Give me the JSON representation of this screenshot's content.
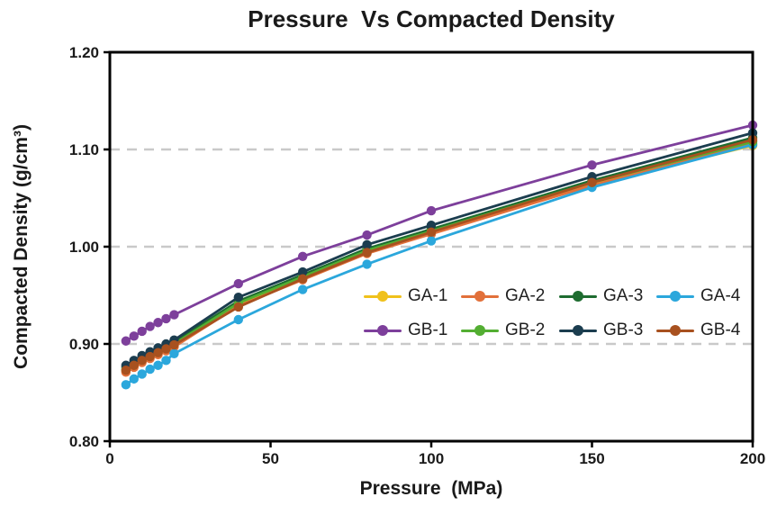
{
  "chart_data": {
    "type": "line",
    "title": "Pressure  Vs Compacted Density",
    "xlabel": "Pressure  (MPa)",
    "ylabel": "Compacted Density (g/cm³)",
    "x": [
      5,
      7.5,
      10,
      12.5,
      15,
      17.5,
      20,
      40,
      60,
      80,
      100,
      150,
      200
    ],
    "xlim": [
      0,
      200
    ],
    "ylim": [
      0.8,
      1.2
    ],
    "x_ticks": [
      "0",
      "50",
      "100",
      "150",
      "200"
    ],
    "y_ticks": [
      "0.80",
      "0.90",
      "1.00",
      "1.10",
      "1.20"
    ],
    "y_gridlines": [
      0.9,
      1.0,
      1.1
    ],
    "grid_style": "dashed horizontal, light gray",
    "legend_position": "inside plot, lower right, 2 rows x 4 columns",
    "series": [
      {
        "name": "GA-1",
        "color": "#F0C11B",
        "values": [
          0.872,
          0.877,
          0.882,
          0.886,
          0.89,
          0.894,
          0.898,
          0.94,
          0.967,
          0.994,
          1.014,
          1.064,
          1.104
        ]
      },
      {
        "name": "GA-2",
        "color": "#E2703A",
        "values": [
          0.871,
          0.876,
          0.881,
          0.885,
          0.889,
          0.893,
          0.897,
          0.939,
          0.966,
          0.993,
          1.013,
          1.063,
          1.106
        ]
      },
      {
        "name": "GA-3",
        "color": "#1E6C30",
        "values": [
          0.876,
          0.881,
          0.886,
          0.89,
          0.894,
          0.898,
          0.902,
          0.944,
          0.971,
          0.998,
          1.018,
          1.068,
          1.112
        ]
      },
      {
        "name": "GA-4",
        "color": "#2BA7DC",
        "values": [
          0.858,
          0.864,
          0.869,
          0.874,
          0.878,
          0.883,
          0.89,
          0.925,
          0.956,
          0.982,
          1.006,
          1.061,
          1.105
        ]
      },
      {
        "name": "GB-1",
        "color": "#7D3F9B",
        "values": [
          0.903,
          0.908,
          0.913,
          0.918,
          0.922,
          0.926,
          0.93,
          0.962,
          0.99,
          1.012,
          1.037,
          1.084,
          1.125
        ]
      },
      {
        "name": "GB-2",
        "color": "#53AE32",
        "values": [
          0.874,
          0.879,
          0.884,
          0.888,
          0.892,
          0.896,
          0.9,
          0.942,
          0.969,
          0.996,
          1.016,
          1.066,
          1.108
        ]
      },
      {
        "name": "GB-3",
        "color": "#1B3D4F",
        "values": [
          0.878,
          0.883,
          0.888,
          0.892,
          0.896,
          0.9,
          0.904,
          0.948,
          0.974,
          1.002,
          1.022,
          1.072,
          1.117
        ]
      },
      {
        "name": "GB-4",
        "color": "#A8511F",
        "values": [
          0.873,
          0.878,
          0.883,
          0.887,
          0.891,
          0.895,
          0.899,
          0.938,
          0.967,
          0.994,
          1.015,
          1.066,
          1.11
        ]
      }
    ]
  }
}
